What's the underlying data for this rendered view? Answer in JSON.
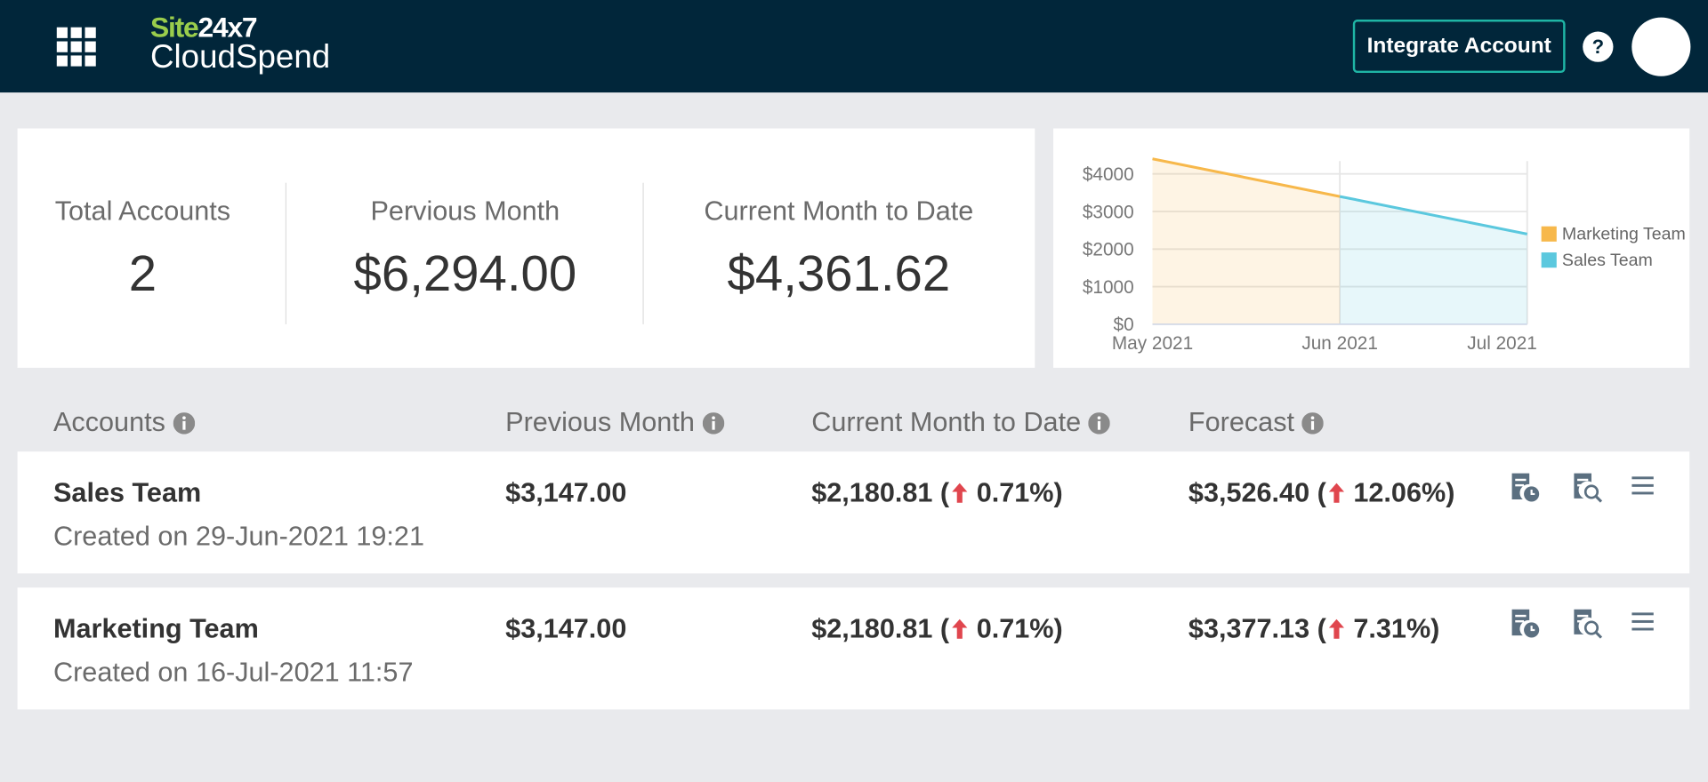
{
  "header": {
    "logo_site": "Site",
    "logo_24x7": "24x7",
    "product": "CloudSpend",
    "button": "Integrate Account",
    "help": "?"
  },
  "summary": [
    {
      "label": "Total Accounts",
      "value": "2"
    },
    {
      "label": "Pervious Month",
      "value": "$6,294.00"
    },
    {
      "label": "Current Month to Date",
      "value": "$4,361.62"
    }
  ],
  "chart_data": {
    "type": "area",
    "categories": [
      "May 2021",
      "Jun 2021",
      "Jul 2021"
    ],
    "series": [
      {
        "name": "Marketing Team",
        "color": "#f7b84b",
        "values": [
          4400,
          3400,
          null
        ]
      },
      {
        "name": "Sales Team",
        "color": "#5bc8de",
        "values": [
          null,
          3400,
          2400
        ]
      }
    ],
    "ylim": [
      0,
      4400
    ],
    "yticks": [
      {
        "value": 0,
        "label": "$0"
      },
      {
        "value": 1000,
        "label": "$1000"
      },
      {
        "value": 2000,
        "label": "$2000"
      },
      {
        "value": 3000,
        "label": "$3000"
      },
      {
        "value": 4000,
        "label": "$4000"
      }
    ],
    "grid": true,
    "legend": "right"
  },
  "table": {
    "columns": [
      "Accounts",
      "Previous Month",
      "Current Month to Date",
      "Forecast"
    ],
    "rows": [
      {
        "name": "Sales Team",
        "created": "Created on 29-Jun-2021 19:21",
        "previous": "$3,147.00",
        "current": "$2,180.81 (",
        "current_change": "0.71%)",
        "forecast": "$3,526.40 (",
        "forecast_change": "12.06%)"
      },
      {
        "name": "Marketing Team",
        "created": "Created on 16-Jul-2021 11:57",
        "previous": "$3,147.00",
        "current": "$2,180.81 (",
        "current_change": "0.71%)",
        "forecast": "$3,377.13 (",
        "forecast_change": "7.31%)"
      }
    ]
  }
}
